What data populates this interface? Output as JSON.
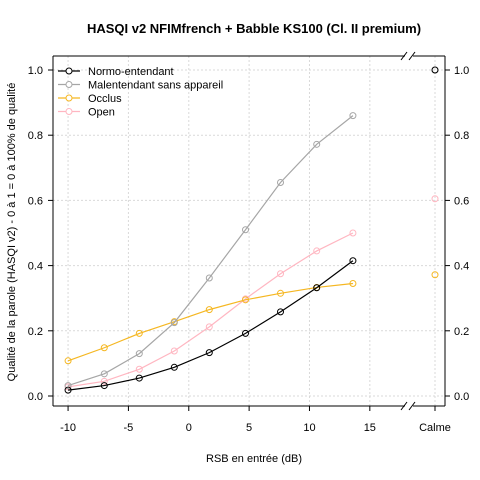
{
  "chart_data": {
    "type": "line",
    "title": "HASQI v2 NFIMfrench + Babble KS100 (Cl. II premium)",
    "xlabel": "RSB en entrée (dB)",
    "ylabel": "Qualité de la parole (HASQI v2) - 0 à 1 = 0 à 100% de qualité",
    "x": [
      -10,
      -7,
      -4.1,
      -1.2,
      1.7,
      4.7,
      7.6,
      10.6,
      13.6
    ],
    "xlim": [
      -11,
      17.5
    ],
    "ylim": [
      0,
      1
    ],
    "x_ticks": [
      -10,
      -5,
      0,
      5,
      10,
      15
    ],
    "x_tick_labels": [
      "-10",
      "-5",
      "0",
      "5",
      "10",
      "15"
    ],
    "y_ticks": [
      0,
      0.2,
      0.4,
      0.6,
      0.8,
      1
    ],
    "y_tick_labels": [
      "0.0",
      "0.2",
      "0.4",
      "0.6",
      "0.8",
      "1.0"
    ],
    "calme_label": "Calme",
    "grid": true,
    "legend_position": "top-left",
    "series": [
      {
        "name": "Normo-entendant",
        "color": "#000000",
        "values": [
          0.018,
          0.032,
          0.055,
          0.088,
          0.133,
          0.192,
          0.258,
          0.332,
          0.415
        ],
        "calme": 1.0
      },
      {
        "name": "Malentendant sans appareil",
        "color": "#a6a6a6",
        "values": [
          0.032,
          0.068,
          0.13,
          0.225,
          0.362,
          0.51,
          0.655,
          0.772,
          0.86
        ],
        "calme": 1.0
      },
      {
        "name": "Occlus",
        "color": "#f5b722",
        "values": [
          0.108,
          0.148,
          0.192,
          0.228,
          0.265,
          0.295,
          0.315,
          0.333,
          0.345
        ],
        "calme": 0.372
      },
      {
        "name": "Open",
        "color": "#ffb6c1",
        "values": [
          0.028,
          0.045,
          0.082,
          0.138,
          0.212,
          0.298,
          0.375,
          0.445,
          0.5
        ],
        "calme": 0.605
      }
    ]
  }
}
